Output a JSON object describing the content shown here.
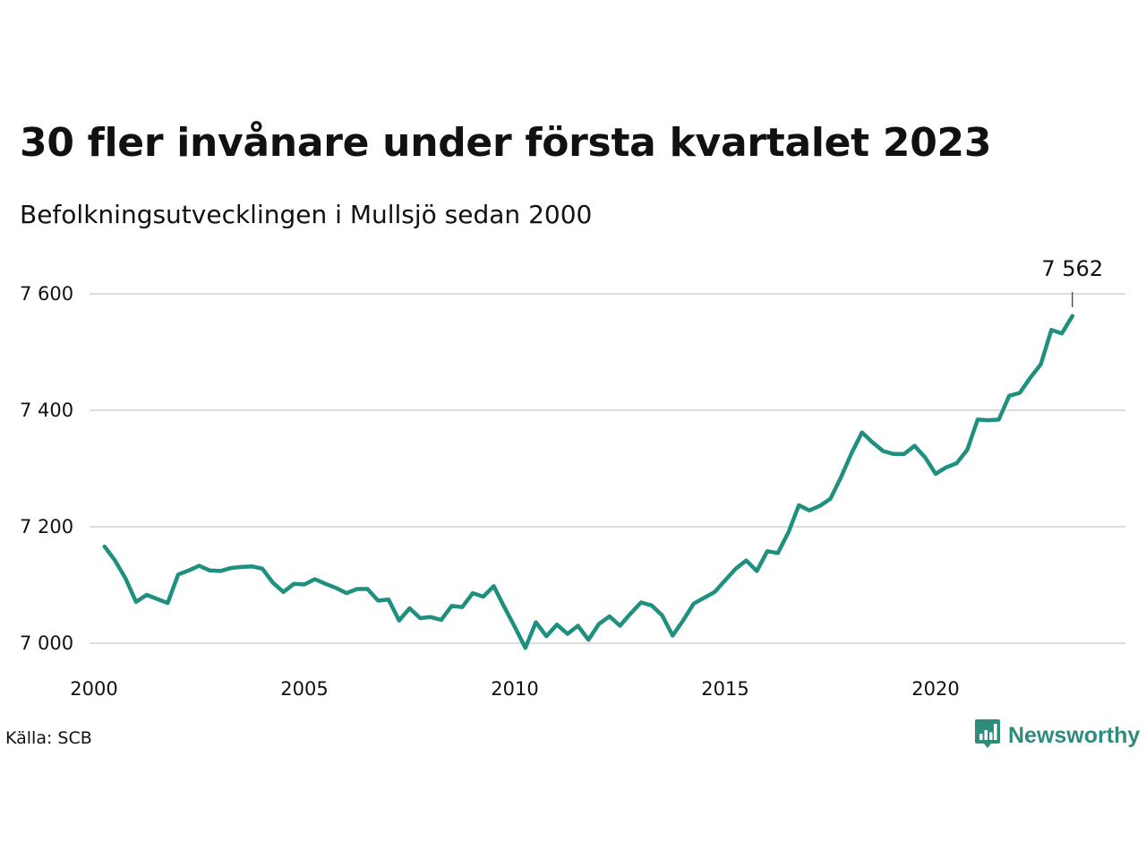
{
  "title": "30 fler invånare under första kvartalet 2023",
  "subtitle": "Befolkningsutvecklingen i Mullsjö sedan 2000",
  "source": "Källa: SCB",
  "brand": {
    "name": "Newsworthy",
    "icon": "newsworthy-logo-icon"
  },
  "colors": {
    "line": "#1f9080",
    "grid": "#dddddd",
    "brand": "#2e8c7d"
  },
  "chart_data": {
    "type": "line",
    "title": "30 fler invånare under första kvartalet 2023",
    "subtitle": "Befolkningsutvecklingen i Mullsjö sedan 2000",
    "xlabel": "",
    "ylabel": "",
    "xlim": [
      2000,
      2024
    ],
    "ylim": [
      6980,
      7620
    ],
    "grid": "horizontal",
    "y_ticks": [
      7000,
      7200,
      7400,
      7600
    ],
    "y_tick_labels": [
      "7 000",
      "7 200",
      "7 400",
      "7 600"
    ],
    "x_ticks": [
      2000,
      2005,
      2010,
      2015,
      2020
    ],
    "x_tick_labels": [
      "2000",
      "2005",
      "2010",
      "2015",
      "2020"
    ],
    "end_label": "7 562",
    "series": [
      {
        "x": [
          2000.25,
          2000.5,
          2000.75,
          2001.0,
          2001.25,
          2001.5,
          2001.75,
          2002.0,
          2002.25,
          2002.5,
          2002.75,
          2003.0,
          2003.25,
          2003.5,
          2003.75,
          2004.0,
          2004.25,
          2004.5,
          2004.75,
          2005.0,
          2005.25,
          2005.5,
          2005.75,
          2006.0,
          2006.25,
          2006.5,
          2006.75,
          2007.0,
          2007.25,
          2007.5,
          2007.75,
          2008.0,
          2008.25,
          2008.5,
          2008.75,
          2009.0,
          2009.25,
          2009.5,
          2009.75,
          2010.0,
          2010.25,
          2010.5,
          2010.75,
          2011.0,
          2011.25,
          2011.5,
          2011.75,
          2012.0,
          2012.25,
          2012.5,
          2012.75,
          2013.0,
          2013.25,
          2013.5,
          2013.75,
          2014.0,
          2014.25,
          2014.5,
          2014.75,
          2015.0,
          2015.25,
          2015.5,
          2015.75,
          2016.0,
          2016.25,
          2016.5,
          2016.75,
          2017.0,
          2017.25,
          2017.5,
          2017.75,
          2018.0,
          2018.25,
          2018.5,
          2018.75,
          2019.0,
          2019.25,
          2019.5,
          2019.75,
          2020.0,
          2020.25,
          2020.5,
          2020.75,
          2021.0,
          2021.25,
          2021.5,
          2021.75,
          2022.0,
          2022.25,
          2022.5,
          2022.75,
          2023.0,
          2023.25
        ],
        "values": [
          7166,
          7142,
          7111,
          7071,
          7083,
          7076,
          7069,
          7118,
          7125,
          7133,
          7125,
          7124,
          7129,
          7131,
          7132,
          7128,
          7104,
          7088,
          7102,
          7101,
          7110,
          7102,
          7095,
          7086,
          7093,
          7093,
          7073,
          7075,
          7039,
          7060,
          7043,
          7045,
          7040,
          7064,
          7062,
          7086,
          7080,
          7098,
          7062,
          7028,
          6992,
          7036,
          7012,
          7032,
          7016,
          7030,
          7006,
          7033,
          7046,
          7030,
          7051,
          7070,
          7065,
          7048,
          7013,
          7039,
          7068,
          7078,
          7088,
          7108,
          7128,
          7142,
          7124,
          7158,
          7155,
          7190,
          7237,
          7228,
          7236,
          7248,
          7285,
          7326,
          7362,
          7345,
          7330,
          7325,
          7325,
          7339,
          7319,
          7291,
          7302,
          7309,
          7332,
          7384,
          7383,
          7384,
          7425,
          7430,
          7456,
          7479,
          7538,
          7532,
          7562
        ]
      }
    ]
  }
}
